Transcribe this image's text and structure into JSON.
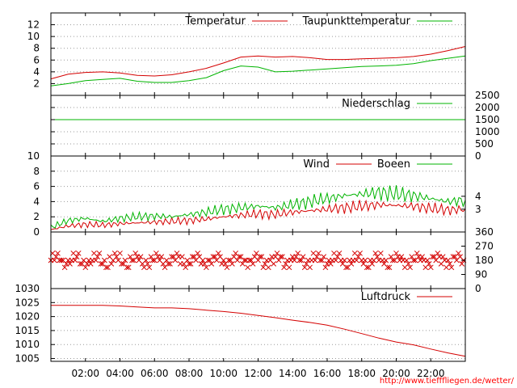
{
  "footer": {
    "url": "http://www.tiefffliegen.de/wetter/"
  },
  "colors": {
    "red": "#d40000",
    "green": "#00b400",
    "grid": "#9a9a9a",
    "frame": "#000000"
  },
  "chart_data": [
    {
      "id": "temperature",
      "type": "line",
      "x_unit": "hours",
      "xlim": [
        0,
        24
      ],
      "ylim": [
        0,
        14
      ],
      "y_ticks": [
        "2",
        "4",
        "6",
        "8",
        "10",
        "12"
      ],
      "legend_position": "top-right",
      "series": [
        {
          "name": "Temperatur",
          "color": "red",
          "x": [
            0,
            1,
            2,
            3,
            4,
            5,
            6,
            7,
            8,
            9,
            10,
            11,
            12,
            13,
            14,
            15,
            16,
            17,
            18,
            19,
            20,
            21,
            22,
            23,
            24
          ],
          "values": [
            2.8,
            3.6,
            3.9,
            4.0,
            3.8,
            3.4,
            3.3,
            3.5,
            4.0,
            4.6,
            5.5,
            6.5,
            6.7,
            6.5,
            6.6,
            6.4,
            6.1,
            6.1,
            6.2,
            6.3,
            6.4,
            6.6,
            7.0,
            7.6,
            8.3
          ]
        },
        {
          "name": "Taupunkttemperatur",
          "color": "green",
          "x": [
            0,
            1,
            2,
            3,
            4,
            5,
            6,
            7,
            8,
            9,
            10,
            11,
            12,
            13,
            14,
            15,
            16,
            17,
            18,
            19,
            20,
            21,
            22,
            23,
            24
          ],
          "values": [
            1.6,
            2.0,
            2.5,
            2.7,
            2.9,
            2.4,
            2.2,
            2.2,
            2.5,
            3.0,
            4.2,
            5.0,
            4.8,
            4.0,
            4.1,
            4.3,
            4.5,
            4.7,
            4.9,
            5.0,
            5.1,
            5.4,
            5.9,
            6.3,
            6.7
          ]
        }
      ]
    },
    {
      "id": "precipitation",
      "type": "line",
      "x_unit": "hours",
      "xlim": [
        0,
        24
      ],
      "ylim": [
        0,
        2500
      ],
      "y_ticks": [
        "0",
        "500",
        "1000",
        "1500",
        "2000",
        "2500"
      ],
      "legend_position": "top-right",
      "series": [
        {
          "name": "Niederschlag",
          "color": "green",
          "x": [
            0,
            24
          ],
          "values": [
            1500,
            1500
          ]
        }
      ]
    },
    {
      "id": "wind",
      "type": "line",
      "x_unit": "hours",
      "xlim": [
        0,
        24
      ],
      "ylim": [
        0,
        10
      ],
      "y_ticks": [
        "0",
        "2",
        "4",
        "6",
        "8",
        "10"
      ],
      "y2_ticks": [
        {
          "value": 3,
          "label": "3"
        },
        {
          "value": 4.7,
          "label": "4"
        }
      ],
      "legend_position": "top-right",
      "series": [
        {
          "name": "Wind",
          "color": "red",
          "x": [
            0,
            1,
            2,
            3,
            4,
            5,
            6,
            7,
            8,
            9,
            10,
            11,
            12,
            13,
            14,
            15,
            16,
            17,
            18,
            19,
            20,
            21,
            22,
            23,
            24
          ],
          "values": [
            0.3,
            0.8,
            1.0,
            0.9,
            1.1,
            1.2,
            1.3,
            1.4,
            1.5,
            1.7,
            2.0,
            2.2,
            2.4,
            2.3,
            2.6,
            2.8,
            3.0,
            3.2,
            3.4,
            3.6,
            3.5,
            3.4,
            3.1,
            2.9,
            3.0
          ]
        },
        {
          "name": "Boeen",
          "color": "green",
          "x": [
            0,
            1,
            2,
            3,
            4,
            5,
            6,
            7,
            8,
            9,
            10,
            11,
            12,
            13,
            14,
            15,
            16,
            17,
            18,
            19,
            20,
            21,
            22,
            23,
            24
          ],
          "values": [
            0.6,
            1.5,
            1.8,
            1.4,
            1.8,
            2.0,
            2.1,
            2.0,
            2.3,
            2.6,
            3.0,
            3.2,
            3.4,
            3.2,
            3.6,
            4.0,
            4.4,
            4.8,
            5.0,
            5.2,
            5.0,
            4.8,
            4.4,
            4.0,
            4.2
          ]
        }
      ]
    },
    {
      "id": "wind_direction",
      "type": "scatter",
      "x_unit": "hours",
      "xlim": [
        0,
        24
      ],
      "ylim": [
        0,
        360
      ],
      "y2_ticks": [
        {
          "value": 0,
          "label": "0"
        },
        {
          "value": 90,
          "label": "90"
        },
        {
          "value": 180,
          "label": "180"
        },
        {
          "value": 270,
          "label": "270"
        },
        {
          "value": 360,
          "label": "360"
        }
      ],
      "x_step": 0.1,
      "base": 180,
      "spread": 70,
      "marker": "x",
      "color": "red"
    },
    {
      "id": "pressure",
      "type": "line",
      "x_unit": "hours",
      "xlim": [
        0,
        24
      ],
      "ylim": [
        1004,
        1030
      ],
      "y_ticks": [
        "1005",
        "1010",
        "1015",
        "1020",
        "1025",
        "1030"
      ],
      "x_ticks": [
        "02:00",
        "04:00",
        "06:00",
        "08:00",
        "10:00",
        "12:00",
        "14:00",
        "16:00",
        "18:00",
        "20:00",
        "22:00"
      ],
      "legend_position": "top-right",
      "series": [
        {
          "name": "Luftdruck",
          "color": "red",
          "x": [
            0,
            1,
            2,
            3,
            4,
            5,
            6,
            7,
            8,
            9,
            10,
            11,
            12,
            13,
            14,
            15,
            16,
            17,
            18,
            19,
            20,
            21,
            22,
            23,
            24
          ],
          "values": [
            1024.0,
            1024.0,
            1024.0,
            1024.0,
            1023.8,
            1023.4,
            1023.1,
            1023.1,
            1022.8,
            1022.3,
            1021.8,
            1021.2,
            1020.4,
            1019.6,
            1018.7,
            1017.9,
            1016.9,
            1015.5,
            1013.9,
            1012.3,
            1010.9,
            1009.9,
            1008.4,
            1007.0,
            1005.8
          ]
        }
      ]
    }
  ]
}
